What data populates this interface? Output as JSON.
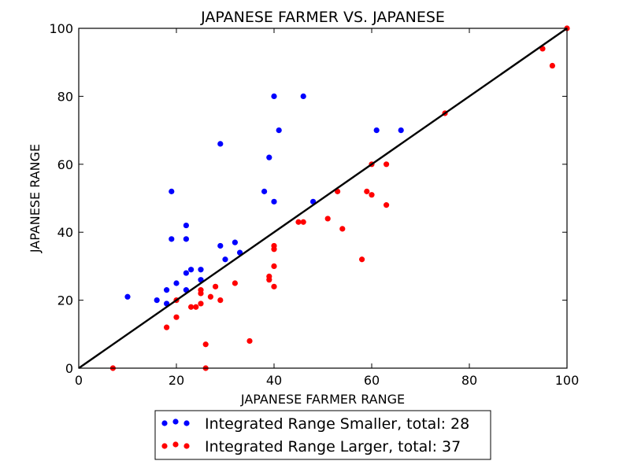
{
  "chart_data": {
    "type": "scatter",
    "title": "JAPANESE FARMER VS. JAPANESE",
    "xlabel": "JAPANESE FARMER RANGE",
    "ylabel": "JAPANESE RANGE",
    "xlim": [
      0,
      100
    ],
    "ylim": [
      0,
      100
    ],
    "xticks": [
      "0",
      "20",
      "40",
      "60",
      "80",
      "100"
    ],
    "yticks": [
      "0",
      "20",
      "40",
      "60",
      "80",
      "100"
    ],
    "grid": false,
    "legend_position": "bottom-center, outside plot",
    "reference_line": {
      "from": [
        0,
        0
      ],
      "to": [
        100,
        100
      ],
      "color": "#000000"
    },
    "series": [
      {
        "name": "Integrated Range Smaller, total: 28",
        "color": "#0000ff",
        "points": [
          [
            10,
            21
          ],
          [
            16,
            20
          ],
          [
            18,
            23
          ],
          [
            18,
            19
          ],
          [
            19,
            52
          ],
          [
            19,
            38
          ],
          [
            20,
            25
          ],
          [
            22,
            42
          ],
          [
            22,
            38
          ],
          [
            22,
            28
          ],
          [
            22,
            23
          ],
          [
            23,
            29
          ],
          [
            25,
            29
          ],
          [
            25,
            26
          ],
          [
            29,
            66
          ],
          [
            29,
            36
          ],
          [
            30,
            32
          ],
          [
            32,
            37
          ],
          [
            33,
            34
          ],
          [
            38,
            52
          ],
          [
            39,
            62
          ],
          [
            40,
            80
          ],
          [
            40,
            49
          ],
          [
            41,
            70
          ],
          [
            46,
            80
          ],
          [
            48,
            49
          ],
          [
            61,
            70
          ],
          [
            66,
            70
          ]
        ]
      },
      {
        "name": "Integrated Range Larger, total: 37",
        "color": "#ff0000",
        "points": [
          [
            7,
            0
          ],
          [
            18,
            12
          ],
          [
            20,
            20
          ],
          [
            20,
            15
          ],
          [
            23,
            18
          ],
          [
            24,
            18
          ],
          [
            25,
            23
          ],
          [
            25,
            22
          ],
          [
            25,
            19
          ],
          [
            26,
            7
          ],
          [
            26,
            0
          ],
          [
            27,
            21
          ],
          [
            28,
            24
          ],
          [
            29,
            20
          ],
          [
            32,
            25
          ],
          [
            35,
            8
          ],
          [
            39,
            27
          ],
          [
            40,
            36
          ],
          [
            40,
            35
          ],
          [
            40,
            30
          ],
          [
            40,
            24
          ],
          [
            45,
            43
          ],
          [
            51,
            44
          ],
          [
            53,
            52
          ],
          [
            54,
            41
          ],
          [
            58,
            32
          ],
          [
            59,
            52
          ],
          [
            60,
            60
          ],
          [
            60,
            51
          ],
          [
            63,
            60
          ],
          [
            63,
            48
          ],
          [
            75,
            75
          ],
          [
            95,
            94
          ],
          [
            97,
            89
          ],
          [
            100,
            100
          ],
          [
            46,
            43
          ],
          [
            39,
            26
          ]
        ]
      }
    ]
  }
}
